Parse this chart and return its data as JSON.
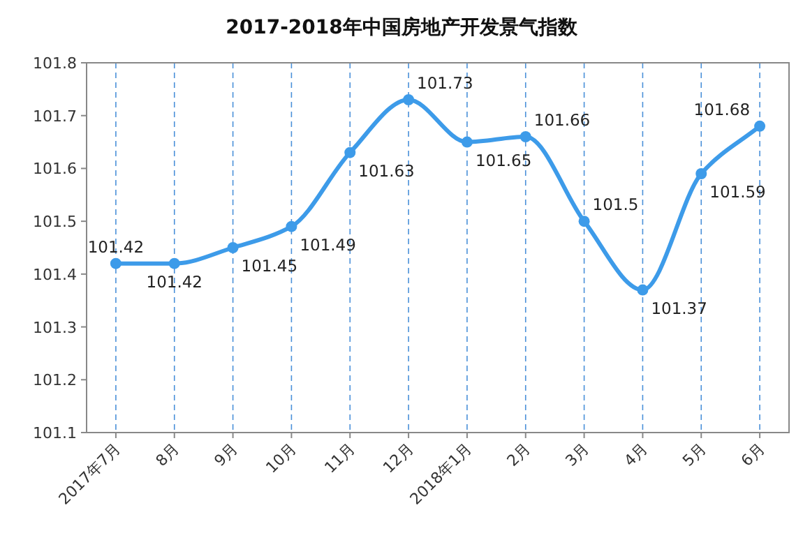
{
  "chart_data": {
    "type": "line",
    "title": "2017-2018年中国房地产开发景气指数",
    "categories": [
      "2017年7月",
      "8月",
      "9月",
      "10月",
      "11月",
      "12月",
      "2018年1月",
      "2月",
      "3月",
      "4月",
      "5月",
      "6月"
    ],
    "values": [
      101.42,
      101.42,
      101.45,
      101.49,
      101.63,
      101.73,
      101.65,
      101.66,
      101.5,
      101.37,
      101.59,
      101.68
    ],
    "color": "#3d9be9",
    "marker": "circle",
    "line_style": "solid",
    "data_labels": true,
    "ylim": [
      101.1,
      101.8
    ],
    "yticks": [
      101.1,
      101.2,
      101.3,
      101.4,
      101.5,
      101.6,
      101.7,
      101.8
    ],
    "grid": "x"
  }
}
